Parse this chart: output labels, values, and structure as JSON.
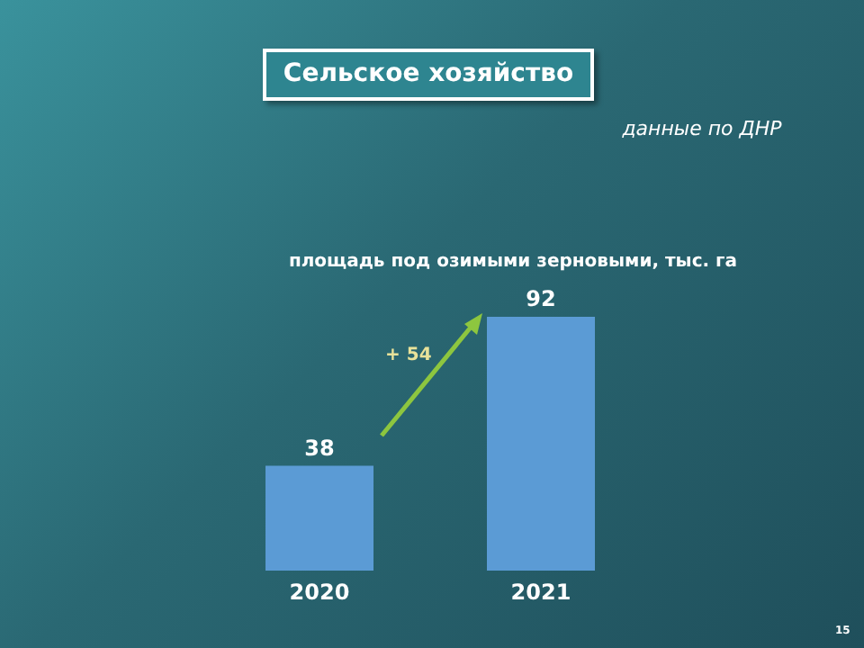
{
  "chart_data": {
    "type": "bar",
    "title": "Сельское хозяйство",
    "subtitle": "данные по ДНР",
    "categories": [
      "2020",
      "2021"
    ],
    "values": [
      38,
      92
    ],
    "color": "#5b9bd5",
    "data_labels": true,
    "annotations": [
      "площадь под озимыми зерновыми, тыс. га",
      "+ 54",
      "15"
    ]
  }
}
